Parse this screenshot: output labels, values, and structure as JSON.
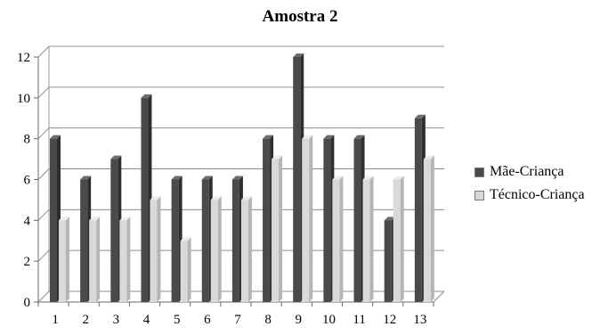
{
  "chart_data": {
    "type": "bar",
    "title": "Amostra 2",
    "categories": [
      "1",
      "2",
      "3",
      "4",
      "5",
      "6",
      "7",
      "8",
      "9",
      "10",
      "11",
      "12",
      "13"
    ],
    "series": [
      {
        "name": "Mãe-Criança",
        "values": [
          8,
          6,
          7,
          10,
          6,
          6,
          6,
          8,
          12,
          8,
          8,
          4,
          9
        ],
        "color": "#4a4a4a"
      },
      {
        "name": "Técnico-Criança",
        "values": [
          4,
          4,
          4,
          5,
          3,
          5,
          5,
          7,
          8,
          6,
          6,
          6,
          7
        ],
        "color": "#d9d9d9"
      }
    ],
    "y_ticks": [
      "0",
      "2",
      "4",
      "6",
      "8",
      "10",
      "12"
    ],
    "ylim": [
      0,
      12
    ],
    "grid": true,
    "legend_position": "right",
    "xlabel": "",
    "ylabel": ""
  }
}
